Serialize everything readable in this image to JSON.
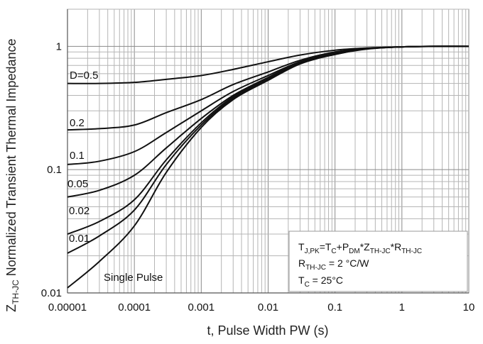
{
  "chart_data": {
    "type": "line",
    "xlabel": "t, Pulse Width PW (s)",
    "ylabel_main": "Z",
    "ylabel_sub": "TH-JC",
    "ylabel_rest": " Normalized Transient Thermal Impedance",
    "xscale": "log",
    "yscale": "log",
    "xlim": [
      1e-05,
      10
    ],
    "ylim": [
      0.01,
      2
    ],
    "grid": true,
    "x_ticks": [
      1e-05,
      0.0001,
      0.001,
      0.01,
      0.1,
      1,
      10
    ],
    "x_tick_labels": [
      "0.00001",
      "0.0001",
      "0.001",
      "0.01",
      "0.1",
      "1",
      "10"
    ],
    "y_ticks": [
      0.01,
      0.1,
      1
    ],
    "y_tick_labels": [
      "0.01",
      "0.1",
      "1"
    ],
    "x": [
      1e-05,
      3e-05,
      0.0001,
      0.0003,
      0.001,
      0.003,
      0.01,
      0.03,
      0.1,
      0.3,
      1,
      3,
      10
    ],
    "series": [
      {
        "name": "D=0.5",
        "values": [
          0.5,
          0.5,
          0.51,
          0.54,
          0.58,
          0.65,
          0.75,
          0.85,
          0.93,
          0.97,
          0.99,
          1.0,
          1.0
        ]
      },
      {
        "name": "0.2",
        "values": [
          0.21,
          0.215,
          0.23,
          0.29,
          0.37,
          0.49,
          0.62,
          0.77,
          0.9,
          0.96,
          0.99,
          1.0,
          1.0
        ]
      },
      {
        "name": "0.1",
        "values": [
          0.11,
          0.117,
          0.14,
          0.2,
          0.3,
          0.43,
          0.58,
          0.75,
          0.88,
          0.96,
          0.99,
          1.0,
          1.0
        ]
      },
      {
        "name": "0.05",
        "values": [
          0.06,
          0.068,
          0.09,
          0.15,
          0.26,
          0.4,
          0.56,
          0.74,
          0.87,
          0.955,
          0.99,
          1.0,
          1.0
        ]
      },
      {
        "name": "0.02",
        "values": [
          0.03,
          0.038,
          0.057,
          0.12,
          0.24,
          0.39,
          0.55,
          0.73,
          0.87,
          0.955,
          0.99,
          1.0,
          1.0
        ]
      },
      {
        "name": "0.01",
        "values": [
          0.021,
          0.029,
          0.047,
          0.11,
          0.23,
          0.38,
          0.54,
          0.73,
          0.86,
          0.955,
          0.99,
          1.0,
          1.0
        ]
      },
      {
        "name": "Single Pulse",
        "values": [
          0.011,
          0.018,
          0.035,
          0.095,
          0.22,
          0.37,
          0.53,
          0.72,
          0.86,
          0.95,
          0.99,
          1.0,
          1.0
        ]
      }
    ],
    "annotation": {
      "line1": {
        "a": "T",
        "a_sub": "J,PK",
        "b": "=T",
        "b_sub": "C",
        "c": "+P",
        "c_sub": "DM",
        "d": "*Z",
        "d_sub": "TH-JC",
        "e": "*R",
        "e_sub": "TH-JC"
      },
      "line2": {
        "a": "R",
        "a_sub": "TH-JC",
        "b": " = 2 °C/W"
      },
      "line3": {
        "a": "T",
        "a_sub": "C",
        "b": " = 25°C"
      }
    },
    "colors": {
      "curve": "#111111",
      "grid": "#b5b5b5",
      "major_grid": "#8a8a8a"
    }
  }
}
